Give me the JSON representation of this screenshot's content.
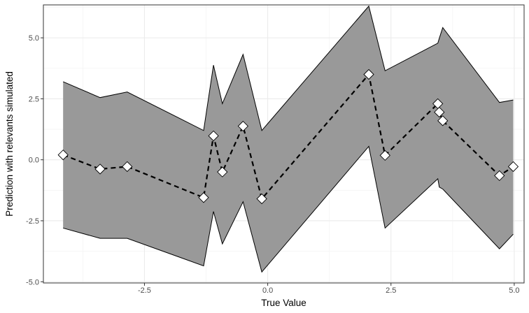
{
  "chart_data": {
    "type": "line",
    "title": "",
    "xlabel": "True Value",
    "ylabel": "Prediction with relevants simulated",
    "xlim": [
      -4.55,
      5.2
    ],
    "ylim": [
      -5.05,
      6.35
    ],
    "x_ticks": [
      -2.5,
      0.0,
      2.5,
      5.0
    ],
    "x_tick_labels": [
      "-2.5",
      "0.0",
      "2.5",
      "5.0"
    ],
    "y_ticks": [
      -5.0,
      -2.5,
      0.0,
      2.5,
      5.0
    ],
    "y_tick_labels": [
      "-5.0",
      "-2.5",
      "0.0",
      "2.5",
      "5.0"
    ],
    "grid": true,
    "legend": "none",
    "colors": {
      "ribbon": "#999999",
      "grid": "#ebebeb",
      "grid_minor": "#f4f4f4",
      "line": "#000000",
      "marker_fill": "#ffffff"
    },
    "series": [
      {
        "style": "dashed-line-diamond-markers",
        "x": [
          -4.15,
          -3.4,
          -2.85,
          -1.3,
          -1.1,
          -0.92,
          -0.5,
          -0.12,
          2.05,
          2.38,
          3.45,
          3.48,
          3.55,
          4.7,
          4.98
        ],
        "y": [
          0.2,
          -0.38,
          -0.28,
          -1.55,
          0.98,
          -0.5,
          1.38,
          -1.6,
          3.5,
          0.18,
          2.3,
          1.95,
          1.6,
          -0.65,
          -0.28
        ]
      },
      {
        "style": "ribbon",
        "x": [
          -4.15,
          -3.4,
          -2.85,
          -1.3,
          -1.1,
          -0.92,
          -0.5,
          -0.12,
          2.05,
          2.38,
          3.45,
          3.48,
          3.55,
          4.7,
          4.98
        ],
        "upper": [
          3.2,
          2.55,
          2.78,
          1.2,
          3.88,
          2.3,
          4.32,
          1.2,
          6.3,
          3.65,
          4.78,
          4.98,
          5.42,
          2.35,
          2.45
        ],
        "lower": [
          -2.8,
          -3.22,
          -3.22,
          -4.35,
          -2.12,
          -3.45,
          -1.72,
          -4.6,
          0.55,
          -2.8,
          -0.78,
          -1.12,
          -1.2,
          -3.65,
          -3.05
        ]
      }
    ]
  }
}
